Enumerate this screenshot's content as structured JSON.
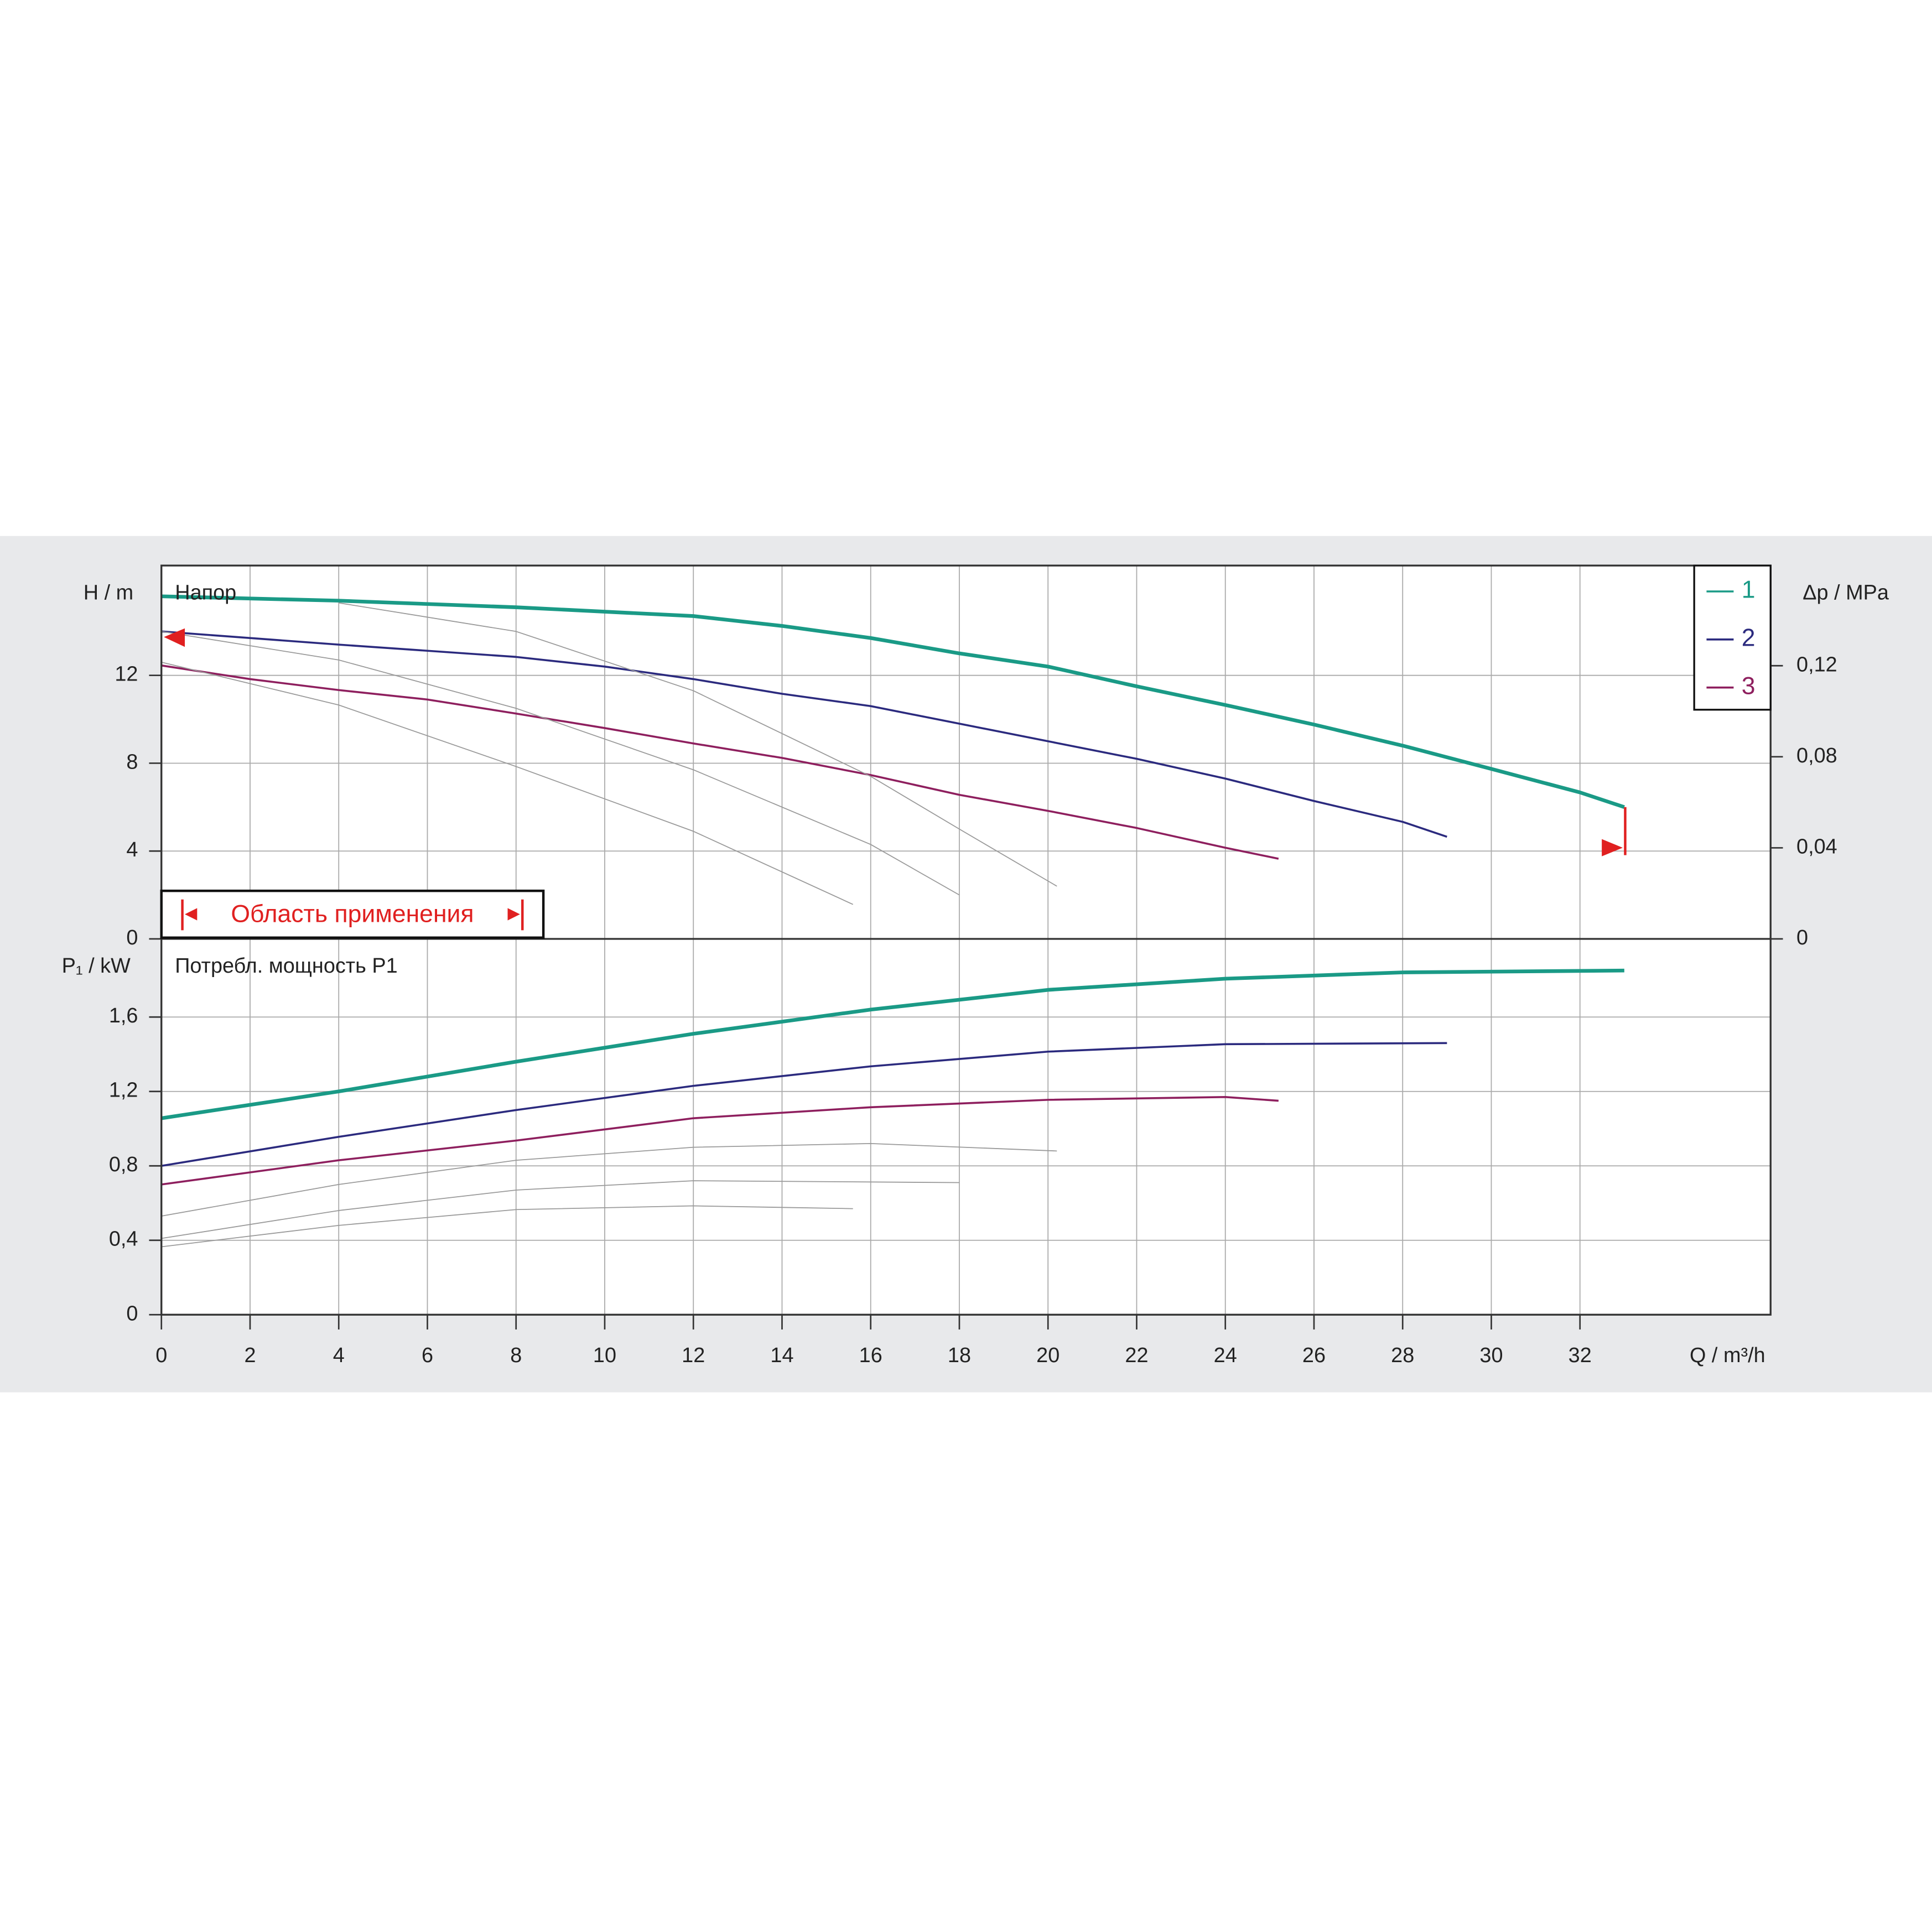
{
  "chart_data": [
    {
      "type": "line",
      "title": "Напор",
      "y_label": "H / m",
      "y2_label": "Δp / MPa",
      "ylim": [
        0,
        17
      ],
      "yticks": [
        0,
        4,
        8,
        12
      ],
      "y2lim": [
        0,
        0.164
      ],
      "y2ticks": [
        {
          "value": 0,
          "label": "0"
        },
        {
          "value": 0.04,
          "label": "0,04"
        },
        {
          "value": 0.08,
          "label": "0,08"
        },
        {
          "value": 0.12,
          "label": "0,12"
        }
      ],
      "grid": true,
      "legend": "upper right",
      "annotation": "Область применения",
      "series": [
        {
          "name": "1",
          "color": "#1a9a86",
          "x": [
            0,
            4,
            8,
            12,
            14,
            16,
            18,
            20,
            22,
            24,
            26,
            28,
            30,
            32,
            33
          ],
          "values": [
            15.6,
            15.4,
            15.1,
            14.7,
            14.25,
            13.7,
            13.0,
            12.4,
            11.5,
            10.65,
            9.76,
            8.8,
            7.74,
            6.67,
            6.0
          ]
        },
        {
          "name": "2",
          "color": "#2b2a7e",
          "x": [
            0,
            4,
            8,
            10,
            12,
            14,
            16,
            18,
            20,
            22,
            24,
            26,
            28,
            29
          ],
          "values": [
            14.0,
            13.4,
            12.84,
            12.4,
            11.83,
            11.16,
            10.6,
            9.8,
            9.0,
            8.2,
            7.3,
            6.28,
            5.33,
            4.65
          ]
        },
        {
          "name": "3",
          "color": "#8e1f5e",
          "x": [
            0,
            2,
            4,
            6,
            8,
            10,
            12,
            14,
            16,
            18,
            20,
            22,
            24,
            25.2
          ],
          "values": [
            12.45,
            11.83,
            11.33,
            10.9,
            10.26,
            9.6,
            8.9,
            8.24,
            7.46,
            6.56,
            5.83,
            5.05,
            4.15,
            3.65
          ]
        },
        {
          "color": "#9a9a9a",
          "x": [
            4,
            8,
            12,
            16,
            18,
            20.2
          ],
          "values": [
            15.3,
            14.0,
            11.3,
            7.4,
            5.0,
            2.4
          ]
        },
        {
          "color": "#9a9a9a",
          "x": [
            0,
            4,
            8,
            12,
            16,
            18
          ],
          "values": [
            14.0,
            12.7,
            10.5,
            7.7,
            4.3,
            2.0
          ]
        },
        {
          "color": "#9a9a9a",
          "x": [
            0,
            4,
            8,
            12,
            15.6
          ],
          "values": [
            12.6,
            10.65,
            7.85,
            4.9,
            1.57
          ]
        }
      ]
    },
    {
      "type": "line",
      "title": "Потребл. мощность P1",
      "y_label": "P₁ / kW",
      "x_label": "Q / m³/h",
      "xlim": [
        0,
        36.3
      ],
      "xticks": [
        0,
        2,
        4,
        6,
        8,
        10,
        12,
        14,
        16,
        18,
        20,
        22,
        24,
        26,
        28,
        30,
        32
      ],
      "ylim": [
        0,
        2.02
      ],
      "yticks": [
        0,
        {
          "value": 0.4,
          "label": "0,4"
        },
        {
          "value": 0.8,
          "label": "0,8"
        },
        {
          "value": 1.2,
          "label": "1,2"
        },
        {
          "value": 1.6,
          "label": "1,6"
        }
      ],
      "grid": true,
      "series": [
        {
          "color": "#1a9a86",
          "x": [
            0,
            4,
            8,
            12,
            16,
            20,
            24,
            28,
            33
          ],
          "values": [
            1.056,
            1.2,
            1.36,
            1.51,
            1.64,
            1.746,
            1.806,
            1.84,
            1.85
          ]
        },
        {
          "color": "#2b2a7e",
          "x": [
            0,
            4,
            8,
            12,
            16,
            20,
            24,
            29
          ],
          "values": [
            0.8,
            0.956,
            1.1,
            1.23,
            1.335,
            1.414,
            1.454,
            1.46
          ]
        },
        {
          "color": "#8e1f5e",
          "x": [
            0,
            4,
            8,
            12,
            16,
            20,
            24,
            25.2
          ],
          "values": [
            0.7,
            0.83,
            0.936,
            1.056,
            1.115,
            1.155,
            1.17,
            1.15
          ]
        },
        {
          "color": "#9a9a9a",
          "x": [
            0,
            4,
            8,
            12,
            16,
            20.2
          ],
          "values": [
            0.53,
            0.7,
            0.83,
            0.9,
            0.92,
            0.88
          ]
        },
        {
          "color": "#9a9a9a",
          "x": [
            0,
            4,
            8,
            12,
            18
          ],
          "values": [
            0.41,
            0.56,
            0.67,
            0.72,
            0.71
          ]
        },
        {
          "color": "#9a9a9a",
          "x": [
            0,
            4,
            8,
            12,
            15.6
          ],
          "values": [
            0.365,
            0.48,
            0.565,
            0.585,
            0.57
          ]
        }
      ]
    }
  ]
}
